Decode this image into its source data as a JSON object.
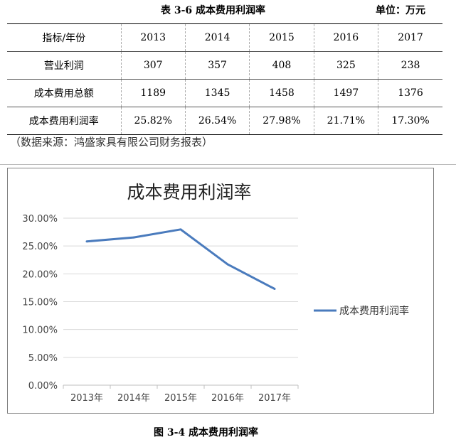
{
  "table": {
    "title": "表 3-6 成本费用利润率",
    "unit": "单位：万元",
    "header": [
      "指标/年份",
      "2013",
      "2014",
      "2015",
      "2016",
      "2017"
    ],
    "rows": [
      [
        "营业利润",
        "307",
        "357",
        "408",
        "325",
        "238"
      ],
      [
        "成本费用总额",
        "1189",
        "1345",
        "1458",
        "1497",
        "1376"
      ],
      [
        "成本费用利润率",
        "25.82%",
        "26.54%",
        "27.98%",
        "21.71%",
        "17.30%"
      ]
    ],
    "source": "（数据来源：鸿盛家具有限公司财务报表）"
  },
  "chart_data": {
    "type": "line",
    "title": "成本费用利润率",
    "categories": [
      "2013年",
      "2014年",
      "2015年",
      "2016年",
      "2017年"
    ],
    "series": [
      {
        "name": "成本费用利润率",
        "values": [
          25.82,
          26.54,
          27.98,
          21.71,
          17.3
        ],
        "color": "#4a7bbd"
      }
    ],
    "ylim": [
      0,
      30
    ],
    "yticks": [
      "0.00%",
      "5.00%",
      "10.00%",
      "15.00%",
      "20.00%",
      "25.00%",
      "30.00%"
    ],
    "grid": true,
    "legend": "right",
    "gridColor": "#d9d9d9"
  },
  "figure_caption": "图 3-4 成本费用利润率"
}
